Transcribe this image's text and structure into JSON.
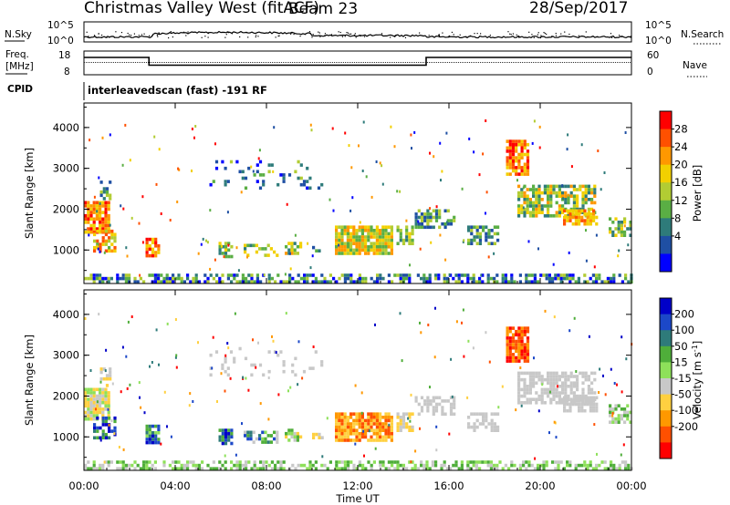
{
  "header": {
    "station": "Christmas Valley West (fitACF)",
    "beam": "Beam 23",
    "date": "28/Sep/2017"
  },
  "noise_panel": {
    "left_label": "N.Sky",
    "right_label": "N.Search",
    "left_ticks": [
      "10^5",
      "10^0"
    ],
    "right_ticks": [
      "10^5",
      "10^0"
    ]
  },
  "freq_panel": {
    "left_label_1": "Freq.",
    "left_label_2": "[MHz]",
    "left_ticks": [
      "18",
      "8"
    ],
    "right_label": "Nave",
    "right_ticks": [
      "60",
      "0"
    ],
    "cpid_label": "CPID",
    "cpid_text": "interleavedscan (fast) -191 RF"
  },
  "chart_data": [
    {
      "type": "heatmap",
      "quantity": "Power",
      "ylabel": "Slant Range [km]",
      "xlabel": "Time UT",
      "xlim_hours": [
        0,
        24
      ],
      "ylim": [
        180,
        4600
      ],
      "colorbar": {
        "label": "Power [dB]",
        "ticks": [
          "28",
          "24",
          "20",
          "16",
          "12",
          "8",
          "4"
        ],
        "colors": [
          "#ff0000",
          "#ff5000",
          "#ff9800",
          "#f2d000",
          "#b2cc33",
          "#5aae44",
          "#2e7b7a",
          "#1f4fa3",
          "#0000ff"
        ]
      },
      "y_ticks": [
        1000,
        2000,
        3000,
        4000
      ],
      "y_tick_labels": [
        "1000",
        "2000",
        "3000",
        "4000"
      ]
    },
    {
      "type": "heatmap",
      "quantity": "Velocity",
      "ylabel": "Slant Range [km]",
      "xlabel": "Time UT",
      "xlim_hours": [
        0,
        24
      ],
      "ylim": [
        180,
        4600
      ],
      "colorbar": {
        "label": "Velocity [m s^-1]",
        "ticks": [
          "200",
          "100",
          "50",
          "15",
          "-15",
          "-50",
          "-100",
          "-200"
        ],
        "colors": [
          "#0000c8",
          "#1c48c8",
          "#2e7b7a",
          "#4fae3a",
          "#8ee05a",
          "#c8c8c8",
          "#ffd040",
          "#ff9800",
          "#ff5000",
          "#ff0000"
        ]
      },
      "y_ticks": [
        1000,
        2000,
        3000,
        4000
      ],
      "y_tick_labels": [
        "1000",
        "2000",
        "3000",
        "4000"
      ]
    }
  ],
  "x_axis": {
    "label": "Time UT",
    "ticks": [
      "00:00",
      "04:00",
      "08:00",
      "12:00",
      "16:00",
      "20:00",
      "00:00"
    ]
  }
}
